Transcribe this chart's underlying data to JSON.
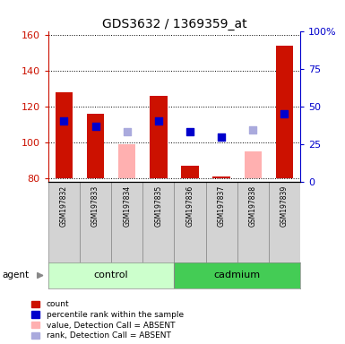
{
  "title": "GDS3632 / 1369359_at",
  "samples": [
    "GSM197832",
    "GSM197833",
    "GSM197834",
    "GSM197835",
    "GSM197836",
    "GSM197837",
    "GSM197838",
    "GSM197839"
  ],
  "groups": [
    "control",
    "control",
    "control",
    "control",
    "cadmium",
    "cadmium",
    "cadmium",
    "cadmium"
  ],
  "ylim_left": [
    78,
    162
  ],
  "ylim_right": [
    0,
    100
  ],
  "yticks_left": [
    80,
    100,
    120,
    140,
    160
  ],
  "yticks_right": [
    0,
    25,
    50,
    75,
    100
  ],
  "ytick_labels_right": [
    "0",
    "25",
    "50",
    "75",
    "100%"
  ],
  "bar_bottom": 80,
  "red_bars": [
    128,
    116,
    null,
    126,
    87,
    81,
    null,
    154
  ],
  "pink_bars": [
    null,
    null,
    99,
    null,
    null,
    null,
    95,
    null
  ],
  "blue_squares": [
    112,
    109,
    null,
    112,
    106,
    103,
    null,
    116
  ],
  "light_blue_squares": [
    null,
    null,
    106,
    null,
    null,
    null,
    107,
    null
  ],
  "red_color": "#cc1100",
  "pink_color": "#ffb0b0",
  "blue_color": "#0000cc",
  "light_blue_color": "#aaaadd",
  "left_axis_color": "#cc1100",
  "right_axis_color": "#0000cc",
  "bar_width": 0.55,
  "square_size": 40,
  "legend_labels": [
    "count",
    "percentile rank within the sample",
    "value, Detection Call = ABSENT",
    "rank, Detection Call = ABSENT"
  ],
  "legend_colors": [
    "#cc1100",
    "#0000cc",
    "#ffb0b0",
    "#aaaadd"
  ],
  "figsize": [
    3.85,
    3.84
  ],
  "dpi": 100
}
